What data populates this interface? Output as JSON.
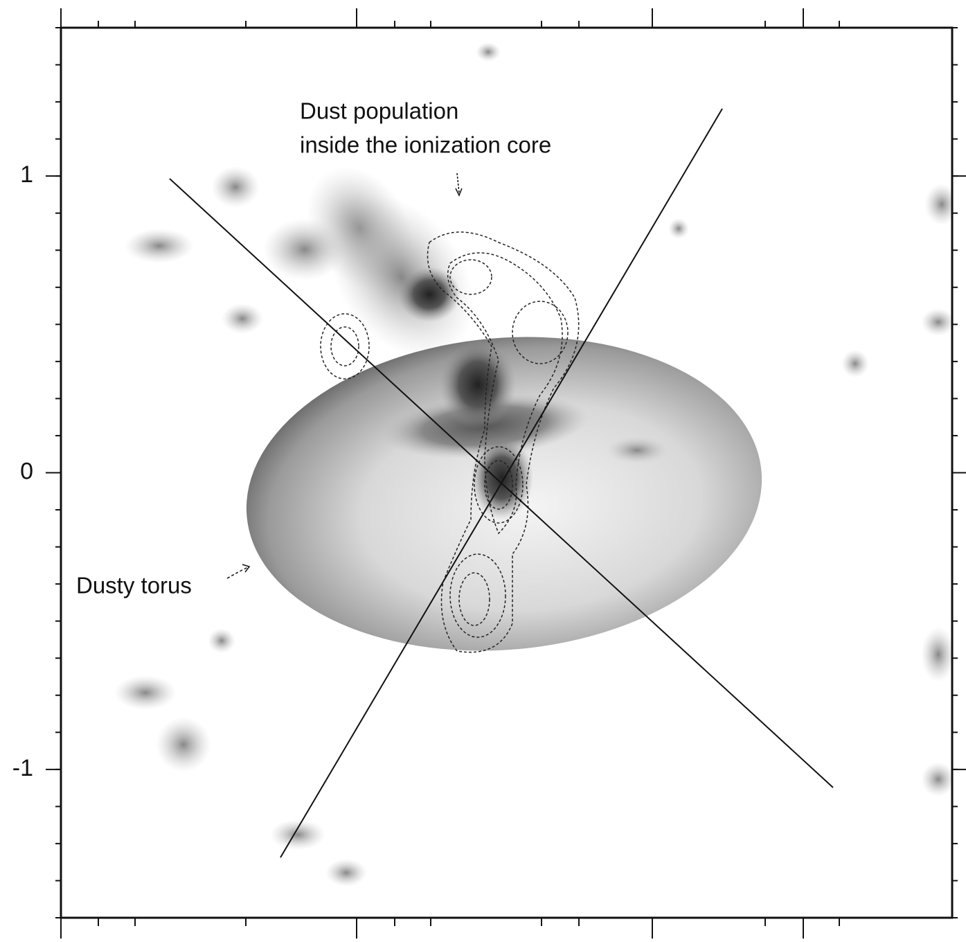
{
  "chart_data": {
    "type": "image",
    "ylim": [
      -1.5,
      1.5
    ],
    "yticks": [
      1,
      0,
      -1
    ],
    "annotations": [
      "Dust population",
      "inside the ionization core",
      "Dusty torus"
    ]
  }
}
